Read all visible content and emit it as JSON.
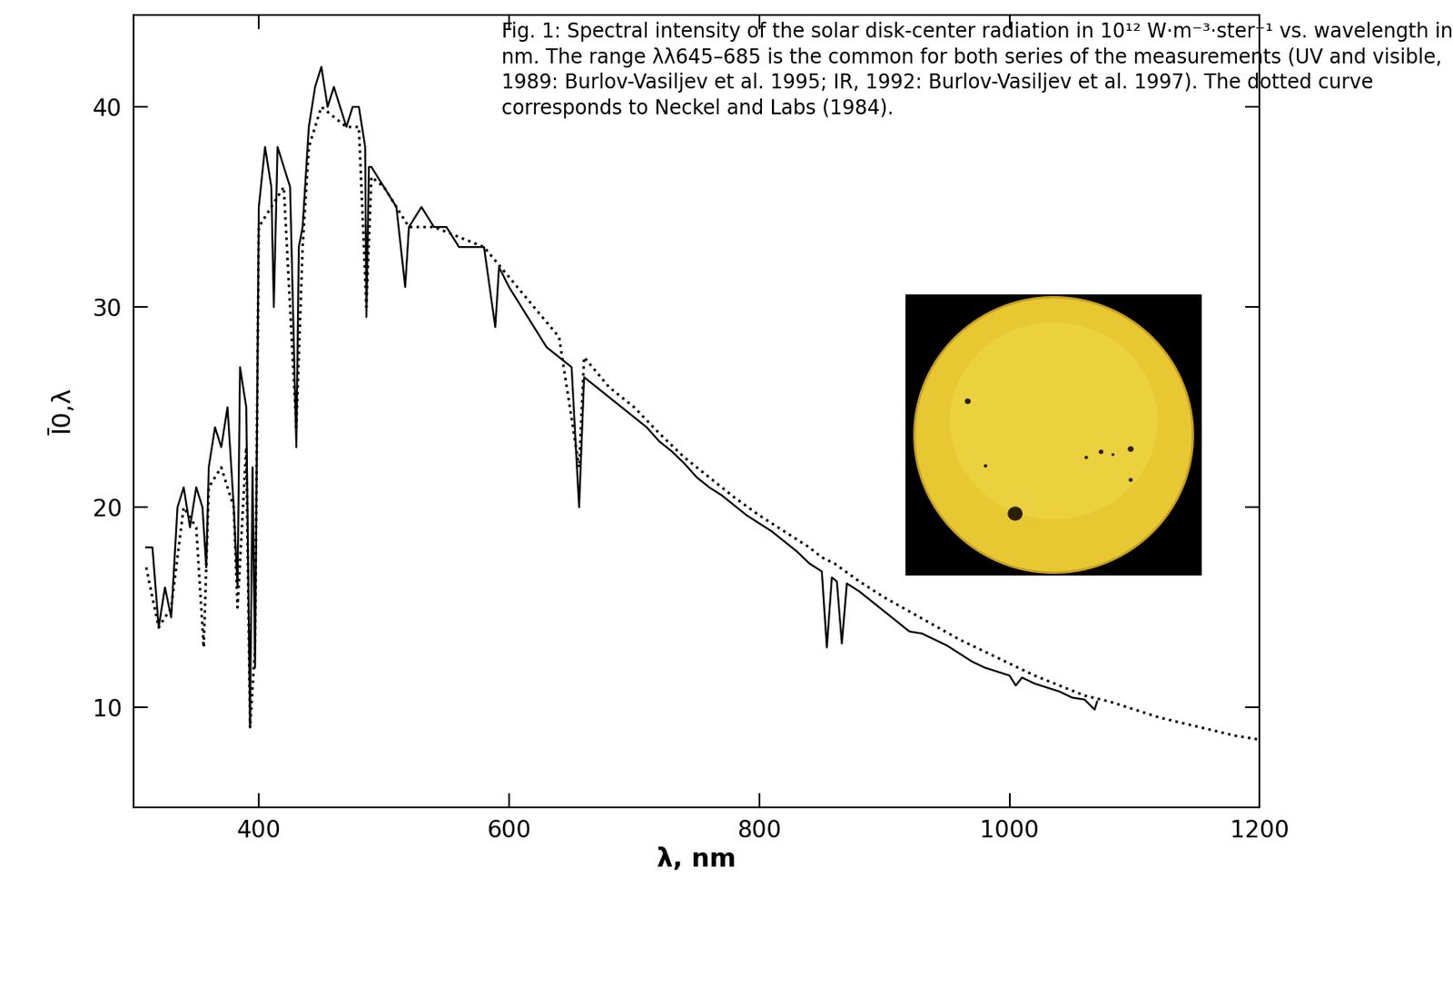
{
  "chart_data": {
    "type": "line",
    "xlabel": "λ, nm",
    "ylabel": "Ī0,λ",
    "annotations": [
      {
        "text": "Fig. 1: Spectral intensity of the solar disk-center radiation in 10¹² W·m⁻³·ster⁻¹ vs. wavelength in nm. The range λλ645–685 is the common for both series of the measurements (UV and visible, 1989: Burlov-Vasiljev et al. 1995; IR, 1992: Burlov-Vasiljev et al. 1997). The dotted curve corresponds to Neckel and Labs (1984)."
      }
    ],
    "xlim": [
      300,
      1200
    ],
    "ylim": [
      5,
      44.6
    ],
    "xticks": [
      400,
      600,
      800,
      1000,
      1200
    ],
    "yticks": [
      10,
      20,
      30,
      40
    ],
    "grid": false,
    "series": [
      {
        "color": "#000000",
        "line_style": "solid",
        "x": [
          310,
          315,
          320,
          325,
          330,
          335,
          340,
          345,
          350,
          355,
          358,
          360,
          365,
          370,
          375,
          380,
          383,
          385,
          390,
          393,
          395,
          397,
          400,
          405,
          410,
          412,
          415,
          420,
          425,
          430,
          432,
          435,
          440,
          445,
          450,
          455,
          460,
          465,
          470,
          475,
          480,
          485,
          486,
          488,
          490,
          500,
          510,
          517,
          520,
          530,
          540,
          550,
          560,
          570,
          580,
          589,
          592,
          600,
          610,
          620,
          630,
          640,
          650,
          656,
          660,
          670,
          680,
          690,
          700,
          710,
          720,
          730,
          740,
          750,
          760,
          770,
          780,
          790,
          800,
          810,
          820,
          830,
          840,
          850,
          854,
          858,
          862,
          866,
          870,
          880,
          890,
          900,
          910,
          920,
          930,
          940,
          950,
          960,
          970,
          980,
          990,
          1000,
          1005,
          1010,
          1020,
          1030,
          1040,
          1050,
          1060,
          1068,
          1070
        ],
        "values": [
          18,
          18,
          14,
          16,
          14.5,
          20,
          21,
          19,
          21,
          20,
          17,
          22,
          24,
          23,
          25,
          20,
          16,
          27,
          25,
          9,
          22,
          12,
          35,
          38,
          36,
          30,
          38,
          37,
          36,
          23,
          33,
          34,
          39,
          41,
          42,
          40,
          41,
          40,
          39,
          40,
          40,
          38,
          29.5,
          37,
          37,
          36,
          35,
          31,
          34,
          35,
          34,
          34,
          33,
          33,
          33,
          29,
          32,
          31,
          30,
          29,
          28,
          27.5,
          27,
          20,
          26.5,
          26,
          25.5,
          25,
          24.5,
          24,
          23.3,
          22.8,
          22.2,
          21.5,
          21,
          20.6,
          20.1,
          19.6,
          19.2,
          18.8,
          18.3,
          17.8,
          17.2,
          16.8,
          13,
          16.5,
          16.3,
          13.2,
          16.2,
          15.8,
          15.3,
          14.8,
          14.3,
          13.8,
          13.7,
          13.4,
          13.1,
          12.7,
          12.3,
          12.0,
          11.8,
          11.6,
          11.1,
          11.5,
          11.2,
          11.0,
          10.8,
          10.5,
          10.4,
          9.9,
          10.3
        ]
      },
      {
        "color": "#000000",
        "line_style": "dotted",
        "x": [
          310,
          320,
          330,
          340,
          350,
          356,
          360,
          370,
          380,
          383,
          390,
          393,
          397,
          400,
          410,
          420,
          430,
          435,
          440,
          450,
          460,
          470,
          480,
          486,
          490,
          500,
          520,
          540,
          560,
          580,
          600,
          620,
          640,
          656,
          660,
          680,
          700,
          720,
          740,
          760,
          780,
          800,
          820,
          840,
          850,
          860,
          880,
          900,
          920,
          940,
          960,
          980,
          1000,
          1020,
          1040,
          1060,
          1080,
          1100,
          1120,
          1140,
          1160,
          1180,
          1200
        ],
        "values": [
          17,
          14,
          15,
          20,
          19,
          13,
          21,
          22,
          20,
          15,
          23,
          9,
          13,
          34,
          35,
          36,
          24,
          33,
          38,
          40,
          39.5,
          39,
          39,
          30,
          36.5,
          36,
          34,
          34,
          33.5,
          33,
          31.5,
          30,
          28.5,
          22,
          27.5,
          26,
          25,
          23.7,
          22.5,
          21.5,
          20.5,
          19.6,
          18.8,
          18,
          17.5,
          17.2,
          16.3,
          15.5,
          14.8,
          14.1,
          13.4,
          12.8,
          12.2,
          11.6,
          11.1,
          10.6,
          10.3,
          9.9,
          9.5,
          9.2,
          8.9,
          8.6,
          8.4
        ]
      }
    ]
  }
}
